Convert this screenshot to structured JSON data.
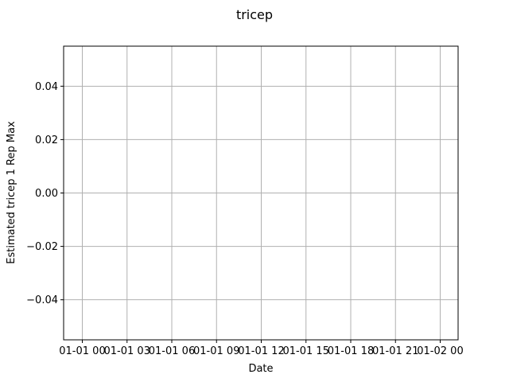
{
  "chart_data": {
    "type": "line",
    "title": "tricep",
    "xlabel": "Date",
    "ylabel": "Estimated tricep 1 Rep Max",
    "x_ticks": [
      "01-01 00",
      "01-01 03",
      "01-01 06",
      "01-01 09",
      "01-01 12",
      "01-01 15",
      "01-01 18",
      "01-01 21",
      "01-02 00"
    ],
    "xlim": [
      "01-01 00",
      "01-02 00"
    ],
    "y_ticks": [
      "0.04",
      "0.02",
      "0.00",
      "−0.02",
      "−0.04"
    ],
    "y_tick_values": [
      0.04,
      0.02,
      0.0,
      -0.02,
      -0.04
    ],
    "ylim": [
      -0.055,
      0.055
    ],
    "grid": true,
    "series": []
  },
  "colors": {
    "grid": "#b0b0b0",
    "axes": "#000000",
    "background": "#ffffff"
  }
}
